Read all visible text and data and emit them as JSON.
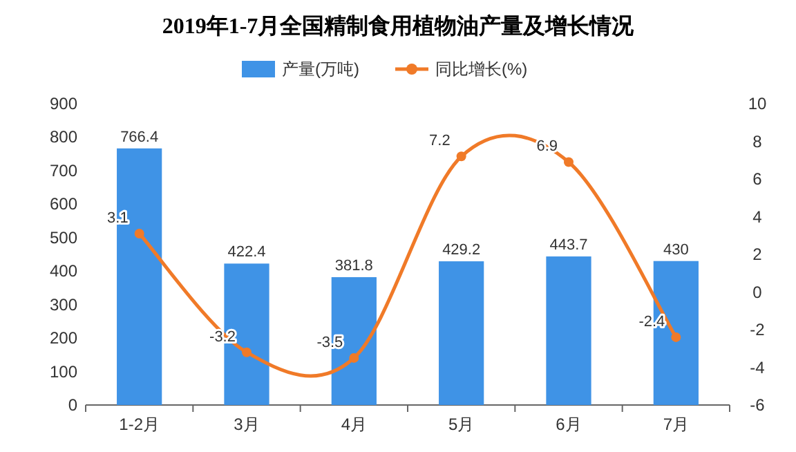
{
  "chart_data": {
    "type": "bar",
    "title": "2019年1-7月全国精制食用植物油产量及增长情况",
    "categories": [
      "1-2月",
      "3月",
      "4月",
      "5月",
      "6月",
      "7月"
    ],
    "series": [
      {
        "name": "产量(万吨)",
        "color": "#3f93e6",
        "values": [
          766.4,
          422.4,
          381.8,
          429.2,
          443.7,
          430
        ]
      },
      {
        "name": "同比增长(%)",
        "type": "line",
        "axis": "y2",
        "color": "#f07a28",
        "marker": "circle",
        "values": [
          3.1,
          -3.2,
          -3.5,
          7.2,
          6.9,
          -2.4
        ]
      }
    ],
    "ylim": [
      0,
      900
    ],
    "yticks": [
      0,
      100,
      200,
      300,
      400,
      500,
      600,
      700,
      800,
      900
    ],
    "y2lim": [
      -6,
      10
    ],
    "y2ticks": [
      -6,
      -4,
      -2,
      0,
      2,
      4,
      6,
      8,
      10
    ],
    "data_labels": true,
    "legend": "top",
    "grid": false
  }
}
